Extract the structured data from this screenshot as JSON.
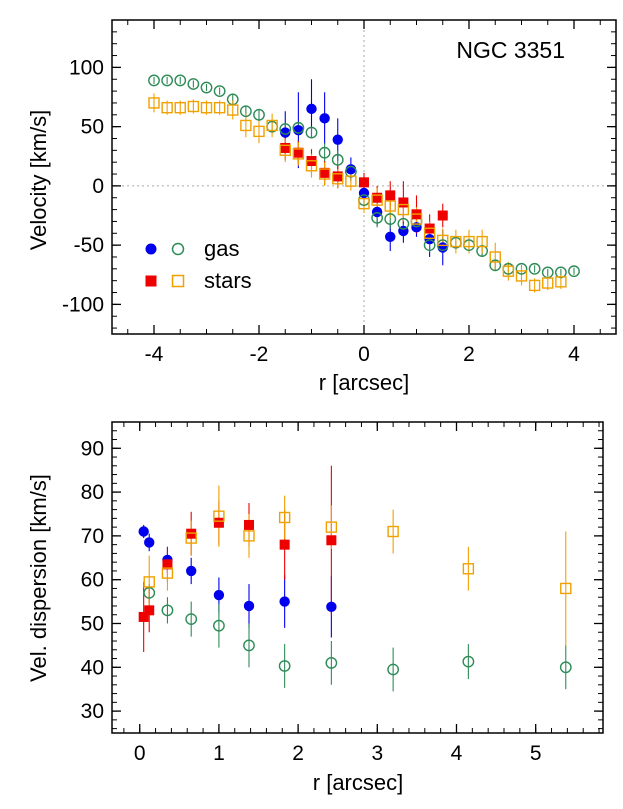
{
  "colors": {
    "gas_filled": "#0000ee",
    "gas_open": "#2e8b57",
    "stars_filled": "#ee0000",
    "stars_open": "#f0a000"
  },
  "chart_data": [
    {
      "type": "scatter",
      "title": "NGC 3351",
      "xlabel": "r [arcsec]",
      "ylabel": "Velocity [km/s]",
      "xlim": [
        -4.8,
        4.8
      ],
      "ylim": [
        -125,
        140
      ],
      "xticks": [
        -4,
        -2,
        0,
        2,
        4
      ],
      "yticks": [
        -100,
        -50,
        0,
        50,
        100
      ],
      "xtick_labels": [
        "-4",
        "-2",
        "0",
        "2",
        "4"
      ],
      "ytick_labels": [
        "-100",
        "-50",
        "0",
        "50",
        "100"
      ],
      "grid": false,
      "reference_lines": {
        "x": 0,
        "y": 0,
        "style": "dotted"
      },
      "legend": {
        "placement": "left",
        "entries": [
          {
            "label": "gas",
            "markers": [
              "filled-circle",
              "open-circle"
            ]
          },
          {
            "label": "stars",
            "markers": [
              "filled-square",
              "open-square"
            ]
          }
        ]
      },
      "series": [
        {
          "name": "gas",
          "marker": "filled-circle",
          "color": "#0000ee",
          "x": [
            -1.5,
            -1.25,
            -1.0,
            -0.75,
            -0.5,
            -0.25,
            0.0,
            0.25,
            0.5,
            0.75,
            1.0,
            1.25,
            1.5
          ],
          "y": [
            45,
            47,
            65,
            57,
            39,
            14,
            -6,
            -22,
            -43,
            -38,
            -35,
            -45,
            -52
          ],
          "err": [
            18,
            32,
            25,
            22,
            18,
            10,
            8,
            12,
            12,
            10,
            8,
            15,
            15
          ]
        },
        {
          "name": "gas",
          "marker": "open-circle",
          "color": "#2e8b57",
          "x": [
            -4.0,
            -3.75,
            -3.5,
            -3.25,
            -3.0,
            -2.75,
            -2.5,
            -2.25,
            -2.0,
            -1.75,
            -1.5,
            -1.25,
            -1.0,
            -0.75,
            -0.5,
            -0.25,
            0.0,
            0.25,
            0.5,
            0.75,
            1.0,
            1.25,
            1.5,
            1.75,
            2.0,
            2.25,
            2.5,
            2.75,
            3.0,
            3.25,
            3.5,
            3.75,
            4.0
          ],
          "y": [
            89,
            89,
            89,
            86,
            83,
            80,
            73,
            63,
            60,
            50,
            48,
            49,
            45,
            28,
            22,
            12,
            -12,
            -27,
            -28,
            -32,
            -30,
            -50,
            -50,
            -48,
            -50,
            -55,
            -67,
            -70,
            -70,
            -70,
            -73,
            -73,
            -72
          ],
          "err": [
            3,
            3,
            3,
            3,
            3,
            3,
            5,
            5,
            5,
            5,
            5,
            5,
            5,
            8,
            8,
            6,
            6,
            8,
            8,
            8,
            8,
            6,
            6,
            5,
            5,
            5,
            4,
            3,
            3,
            3,
            3,
            3,
            3
          ]
        },
        {
          "name": "stars",
          "marker": "filled-square",
          "color": "#ee0000",
          "x": [
            -1.5,
            -1.25,
            -1.0,
            -0.75,
            -0.5,
            0.0,
            0.25,
            0.5,
            0.75,
            1.0,
            1.25,
            1.5
          ],
          "y": [
            32,
            28,
            21,
            11,
            8,
            3,
            -10,
            -8,
            -14,
            -24,
            -36,
            -25
          ],
          "err": [
            10,
            10,
            10,
            10,
            10,
            8,
            10,
            12,
            18,
            16,
            12,
            10
          ]
        },
        {
          "name": "stars",
          "marker": "open-square",
          "color": "#f0a000",
          "x": [
            -4.0,
            -3.75,
            -3.5,
            -3.25,
            -3.0,
            -2.75,
            -2.5,
            -2.25,
            -2.0,
            -1.75,
            -1.5,
            -1.25,
            -1.0,
            -0.75,
            -0.5,
            -0.25,
            0.0,
            0.25,
            0.5,
            0.75,
            1.0,
            1.25,
            1.5,
            1.75,
            2.0,
            2.25,
            2.5,
            2.75,
            3.0,
            3.25,
            3.5,
            3.75
          ],
          "y": [
            70,
            66,
            66,
            67,
            66,
            66,
            64,
            51,
            46,
            51,
            30,
            27,
            17,
            10,
            6,
            4,
            -15,
            -12,
            -17,
            -20,
            -28,
            -40,
            -46,
            -47,
            -47,
            -47,
            -60,
            -72,
            -76,
            -84,
            -82,
            -81
          ],
          "err": [
            8,
            6,
            6,
            6,
            6,
            6,
            8,
            10,
            10,
            10,
            10,
            10,
            10,
            10,
            8,
            8,
            8,
            10,
            10,
            10,
            10,
            10,
            10,
            10,
            10,
            10,
            12,
            8,
            8,
            6,
            6,
            6
          ]
        }
      ]
    },
    {
      "type": "scatter",
      "title": "",
      "xlabel": "r [arcsec]",
      "ylabel": "Vel. dispersion [km/s]",
      "xlim": [
        -0.35,
        5.85
      ],
      "ylim": [
        25,
        96
      ],
      "xticks": [
        0,
        1,
        2,
        3,
        4,
        5
      ],
      "yticks": [
        30,
        40,
        50,
        60,
        70,
        80,
        90
      ],
      "xtick_labels": [
        "0",
        "1",
        "2",
        "3",
        "4",
        "5"
      ],
      "ytick_labels": [
        "30",
        "40",
        "50",
        "60",
        "70",
        "80",
        "90"
      ],
      "grid": false,
      "series": [
        {
          "name": "gas",
          "marker": "filled-circle",
          "color": "#0000ee",
          "x": [
            0.05,
            0.12,
            0.35,
            0.65,
            1.0,
            1.38,
            1.83,
            2.42
          ],
          "y": [
            71,
            68.5,
            64.5,
            62,
            56.5,
            54,
            55,
            53.8
          ],
          "err": [
            1.5,
            2,
            3,
            3,
            4,
            5,
            6,
            7
          ]
        },
        {
          "name": "gas",
          "marker": "open-circle",
          "color": "#2e8b57",
          "x": [
            0.12,
            0.35,
            0.65,
            1.0,
            1.38,
            1.83,
            2.42,
            3.2,
            4.15,
            5.38
          ],
          "y": [
            57,
            53,
            51,
            49.5,
            45,
            40.3,
            41,
            39.5,
            41.3,
            40
          ],
          "err": [
            2,
            3,
            4,
            5,
            5,
            5,
            5,
            5,
            4,
            5
          ]
        },
        {
          "name": "stars",
          "marker": "filled-square",
          "color": "#ee0000",
          "x": [
            0.05,
            0.12,
            0.35,
            0.65,
            1.0,
            1.38,
            1.83,
            2.42
          ],
          "y": [
            51.5,
            53,
            63.5,
            70.5,
            73,
            72.5,
            68,
            69
          ],
          "err": [
            8,
            5,
            4,
            5,
            5,
            5,
            8,
            17
          ]
        },
        {
          "name": "stars",
          "marker": "open-square",
          "color": "#f0a000",
          "x": [
            0.12,
            0.35,
            0.65,
            1.0,
            1.38,
            1.83,
            2.42,
            3.2,
            4.15,
            5.38
          ],
          "y": [
            59.5,
            61.5,
            69.5,
            74.5,
            70,
            74.2,
            72,
            71,
            62.5,
            58
          ],
          "err": [
            6,
            4,
            4,
            7,
            5,
            5,
            5,
            5,
            5,
            13
          ]
        }
      ]
    }
  ]
}
